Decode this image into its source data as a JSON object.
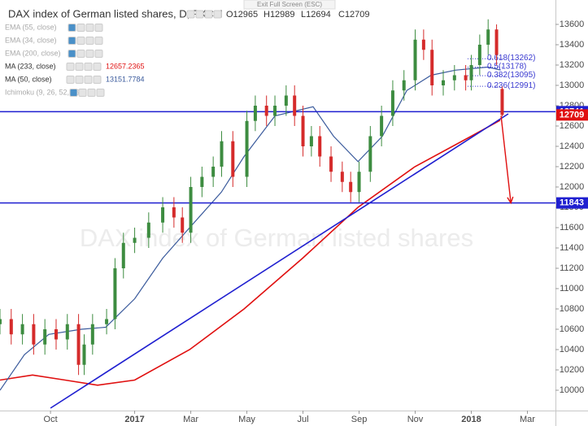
{
  "chart_data": {
    "type": "candlestick",
    "title": "DAX index of German listed shares, D, FXCM",
    "ohlc_header": [
      "O12965",
      "H12989",
      "L12694",
      "C12709"
    ],
    "exit_fullscreen": "Exit Full Screen (ESC)",
    "watermark": "DAX index of German listed shares",
    "indicators": [
      {
        "name": "EMA (55, close)"
      },
      {
        "name": "EMA (34, close)"
      },
      {
        "name": "EMA (200, close)"
      },
      {
        "name": "MA (233, close)",
        "value": 12657.2365,
        "color": "#e01010",
        "x": [
          -1.8,
          -0.64,
          0.52,
          1.68,
          3.0,
          4.96,
          6.9,
          8.99,
          10.96,
          12.99,
          15.0,
          16.03
        ],
        "values": [
          10100,
          10150,
          10100,
          10050,
          10100,
          10400,
          10800,
          11300,
          11800,
          12200,
          12500,
          12657
        ]
      },
      {
        "name": "MA (50, close)",
        "value": 13151.7784,
        "color": "#3a5a9c",
        "x": [
          -1.8,
          -0.93,
          -0.06,
          1.1,
          1.97,
          3.0,
          4.0,
          4.96,
          6.09,
          6.9,
          8.0,
          9.36,
          10.09,
          10.96,
          11.83,
          12.7,
          13.57,
          14.43,
          15.59,
          16.03
        ],
        "values": [
          10000,
          10350,
          10550,
          10600,
          10620,
          10900,
          11300,
          11600,
          11950,
          12300,
          12700,
          12790,
          12500,
          12250,
          12500,
          12950,
          13100,
          13150,
          13180,
          13151
        ]
      },
      {
        "name": "Ichimoku (9, 26, 52, 26)"
      }
    ],
    "x": [
      -1.8,
      -1.4,
      -1,
      -0.6,
      -0.2,
      0.2,
      0.6,
      1.0,
      1.2,
      1.5,
      2.0,
      2.3,
      2.6,
      3.0,
      3.5,
      4.0,
      4.4,
      4.7,
      5.0,
      5.4,
      5.8,
      6.1,
      6.5,
      7.0,
      7.3,
      7.7,
      8.0,
      8.4,
      8.7,
      9.0,
      9.3,
      9.6,
      10.0,
      10.4,
      10.7,
      11.0,
      11.4,
      11.8,
      12.2,
      12.6,
      13.0,
      13.3,
      13.6,
      14.0,
      14.4,
      14.8,
      15.0,
      15.3,
      15.6,
      15.9,
      16.1
    ],
    "open": [
      10650,
      10700,
      10550,
      10650,
      10450,
      10600,
      10500,
      10650,
      10250,
      10450,
      10650,
      10700,
      11200,
      11450,
      11500,
      11650,
      11800,
      11700,
      11550,
      12000,
      12100,
      12200,
      12450,
      12100,
      12650,
      12800,
      12700,
      12800,
      12900,
      12700,
      12400,
      12500,
      12300,
      12150,
      12050,
      11950,
      12150,
      12500,
      12700,
      12950,
      13050,
      13450,
      13350,
      13000,
      13050,
      13100,
      13050,
      13200,
      13400,
      13550,
      12965
    ],
    "high": [
      10800,
      10800,
      10750,
      10750,
      10700,
      10700,
      10750,
      10750,
      10550,
      10750,
      10800,
      11300,
      11550,
      11600,
      11750,
      11900,
      11900,
      11800,
      12100,
      12200,
      12300,
      12550,
      12550,
      12750,
      12900,
      12900,
      12900,
      13000,
      13000,
      12800,
      12600,
      12600,
      12400,
      12250,
      12150,
      12250,
      12600,
      12800,
      13050,
      13150,
      13550,
      13550,
      13450,
      13150,
      13200,
      13200,
      13300,
      13500,
      13650,
      13600,
      12989
    ],
    "low": [
      10550,
      10450,
      10450,
      10350,
      10350,
      10400,
      10400,
      10150,
      10150,
      10350,
      10550,
      10600,
      11100,
      11350,
      11400,
      11550,
      11600,
      11450,
      11450,
      11900,
      12000,
      12100,
      12000,
      12000,
      12550,
      12600,
      12600,
      12700,
      12600,
      12300,
      12300,
      12200,
      12050,
      11950,
      11850,
      11850,
      12050,
      12400,
      12600,
      12850,
      12950,
      13250,
      12900,
      12900,
      12950,
      12950,
      12950,
      13100,
      13300,
      13200,
      12694
    ],
    "close": [
      10700,
      10550,
      10650,
      10450,
      10600,
      10500,
      10650,
      10250,
      10450,
      10650,
      10700,
      11200,
      11450,
      11500,
      11650,
      11800,
      11700,
      11550,
      12000,
      12100,
      12200,
      12450,
      12100,
      12650,
      12800,
      12700,
      12800,
      12900,
      12700,
      12400,
      12500,
      12300,
      12150,
      12050,
      11950,
      12150,
      12500,
      12700,
      12950,
      13050,
      13450,
      13350,
      13000,
      13050,
      13100,
      13050,
      13200,
      13400,
      13550,
      13300,
      12709
    ],
    "up_color": "#3d8c40",
    "down_color": "#d52b2b",
    "trendline": {
      "x": [
        0,
        16.32
      ],
      "values": [
        9824,
        12720
      ],
      "color": "#1f1fd0"
    },
    "levels": [
      {
        "value": 12741,
        "color": "#1f1fd0"
      },
      {
        "value": 11843,
        "color": "#1f1fd0"
      }
    ],
    "last_price_color": "#e01010",
    "arrow": {
      "x": [
        16.06,
        16.41
      ],
      "values": [
        12700,
        11843
      ],
      "color": "#e01010"
    },
    "fib": [
      {
        "value": 13262,
        "label": "0.618(13262)"
      },
      {
        "value": 13178,
        "label": "0.5(13178)"
      },
      {
        "value": 13095,
        "label": "0.382(13095)"
      },
      {
        "value": 12991,
        "label": "0.236(12991)"
      }
    ],
    "fib_color": "#3a3ad0",
    "xlim": [
      -1.8,
      18.0
    ],
    "ylim": [
      9800,
      13840
    ],
    "xticks": [
      {
        "value": 0,
        "label": "Oct"
      },
      {
        "value": 3,
        "label": "2017"
      },
      {
        "value": 5,
        "label": "Mar"
      },
      {
        "value": 7,
        "label": "May"
      },
      {
        "value": 9,
        "label": "Jul"
      },
      {
        "value": 11,
        "label": "Sep"
      },
      {
        "value": 13,
        "label": "Nov"
      },
      {
        "value": 15,
        "label": "2018"
      },
      {
        "value": 17,
        "label": "Mar"
      }
    ],
    "yticks": [
      10000,
      10200,
      10400,
      10600,
      10800,
      11000,
      11200,
      11400,
      11600,
      11800,
      12000,
      12200,
      12400,
      12600,
      12800,
      13000,
      13200,
      13400,
      13600
    ]
  }
}
